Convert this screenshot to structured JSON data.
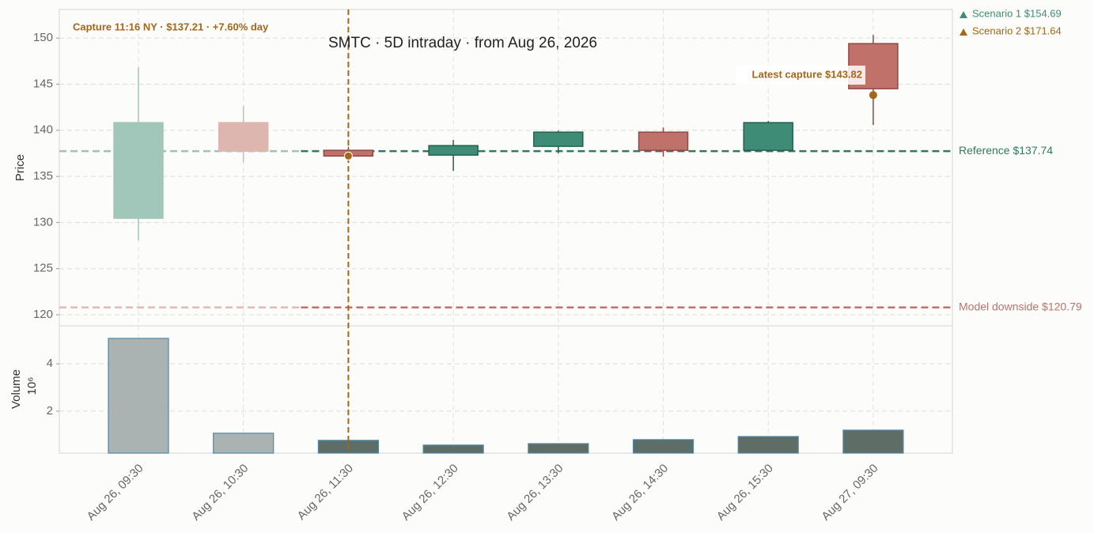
{
  "chart_data": {
    "type": "candlestick",
    "title": "SMTC  ·  5D intraday  ·  from Aug 26, 2026",
    "y_label": "Price",
    "volume_label": "Volume",
    "volume_scale_label": "10⁶",
    "categories": [
      "Aug 26, 09:30",
      "Aug 26, 10:30",
      "Aug 26, 11:30",
      "Aug 26, 12:30",
      "Aug 26, 13:30",
      "Aug 26, 14:30",
      "Aug 26, 15:30",
      "Aug 27, 09:30"
    ],
    "open": [
      130.46,
      140.83,
      137.83,
      137.31,
      138.26,
      139.8,
      137.83,
      149.4
    ],
    "high": [
      146.83,
      142.63,
      138.2,
      138.94,
      139.97,
      140.31,
      141.0,
      150.34
    ],
    "low": [
      128.06,
      136.54,
      137.06,
      135.6,
      137.49,
      137.14,
      137.74,
      140.57
    ],
    "close": [
      140.83,
      137.74,
      137.21,
      138.34,
      139.8,
      137.83,
      140.83,
      144.51
    ],
    "volume": [
      5.07,
      1.07,
      0.77,
      0.57,
      0.63,
      0.8,
      0.93,
      1.2
    ],
    "up_color": "#3f8c76",
    "down_color": "#c0716a",
    "faded_up_color": "#a1c6ba",
    "faded_down_color": "#ddb6af",
    "volume_color": "#5f6d67",
    "faded_volume_color": "#aab3b1",
    "ylim": [
      118.8,
      153.1
    ],
    "yticks": [
      120,
      125,
      130,
      135,
      140,
      145,
      150
    ],
    "volume_ylim": [
      0.23,
      5.6
    ],
    "volume_yticks": [
      2,
      4
    ],
    "grid": true,
    "capture": {
      "category": "Aug 26, 11:30",
      "value": 137.21,
      "label": "Capture 11:16 NY · $137.21 · +7.60% day",
      "color": "#a5661a"
    },
    "latest": {
      "value": 143.82,
      "label": "Latest capture $143.82",
      "color": "#a5661a"
    },
    "reference": {
      "value": 137.74,
      "label": "Reference $137.74",
      "color": "#2f7a63",
      "faded_color": "#9cc3b7"
    },
    "downside": {
      "value": 120.79,
      "label": "Model downside $120.79",
      "color": "#c0716a",
      "faded_color": "#e2b9b3"
    },
    "scenarios": [
      {
        "value": 154.69,
        "label": "Scenario 1 $154.69",
        "color": "#3f8c76"
      },
      {
        "value": 171.64,
        "label": "Scenario 2 $171.64",
        "color": "#a5661a"
      }
    ]
  }
}
